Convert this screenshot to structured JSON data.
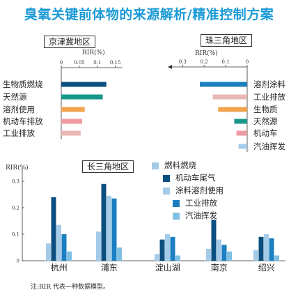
{
  "title": "臭氧关键前体物的来源解析/精准控制方案",
  "note": "注:RIR 代表一种数据模型。",
  "colors": {
    "dark_blue": "#0b4f80",
    "mid_blue": "#1b7fc1",
    "teal": "#17988b",
    "orange": "#f3a34f",
    "pink": "#ee9aa1",
    "light_pink": "#e9b9b4",
    "light_blue": "#a4cbe8",
    "sky": "#7fc0e4"
  },
  "chart_data": [
    {
      "type": "bar",
      "orientation": "horizontal",
      "region": "京津冀地区",
      "axis_label": "RIR(%)",
      "ticks": [
        "0",
        "0.05",
        "0.1",
        "0.15"
      ],
      "xlim": [
        0,
        0.17
      ],
      "categories": [
        "生物质燃烧",
        "天然源",
        "溶剂使用",
        "机动车排放",
        "工业排放"
      ],
      "values": [
        0.125,
        0.115,
        0.065,
        0.058,
        0.054
      ],
      "colors": [
        "#0b4f80",
        "#17988b",
        "#f3a34f",
        "#ee9aa1",
        "#e9b9b4"
      ]
    },
    {
      "type": "bar",
      "orientation": "horizontal",
      "direction": "reversed",
      "region": "珠三角地区",
      "axis_label": "RIR(%)",
      "ticks": [
        "0.3",
        "0.2",
        "0.1",
        "0"
      ],
      "xlim": [
        0,
        0.33
      ],
      "categories": [
        "溶剂涂料",
        "工业排放",
        "生物质",
        "天然源",
        "机动车",
        "汽油挥发"
      ],
      "values": [
        0.22,
        0.16,
        0.135,
        0.06,
        0.05,
        0.04
      ],
      "colors": [
        "#1b7fc1",
        "#e9b9b4",
        "#f3a34f",
        "#17988b",
        "#ee9aa1",
        "#a4cbe8"
      ]
    },
    {
      "type": "bar",
      "orientation": "vertical",
      "region": "长三角地区",
      "ylabel": "RIR(%)",
      "yticks": [
        "0",
        "0.1",
        "0.2",
        "0.3"
      ],
      "ylim": [
        0,
        0.35
      ],
      "categories": [
        "杭州",
        "浦东",
        "淀山湖",
        "南京",
        "绍兴"
      ],
      "series": [
        {
          "name": "燃料燃烧",
          "color": "#a4cbe8",
          "values": [
            0.065,
            0.11,
            0.025,
            0.045,
            0.04
          ]
        },
        {
          "name": "机动车尾气",
          "color": "#0b4f80",
          "values": [
            0.24,
            0.29,
            0.08,
            0.155,
            0.09
          ]
        },
        {
          "name": "涂料溶剂使用",
          "color": "#a4cbe8",
          "values": [
            0.135,
            0.245,
            0.1,
            0.08,
            0.1
          ]
        },
        {
          "name": "工业排放",
          "color": "#1b7fc1",
          "values": [
            0.1,
            0.235,
            0.09,
            0.06,
            0.085
          ]
        },
        {
          "name": "汽油挥发",
          "color": "#7fc0e4",
          "values": [
            0.035,
            0.05,
            0.02,
            0.035,
            0.02
          ]
        }
      ]
    }
  ]
}
